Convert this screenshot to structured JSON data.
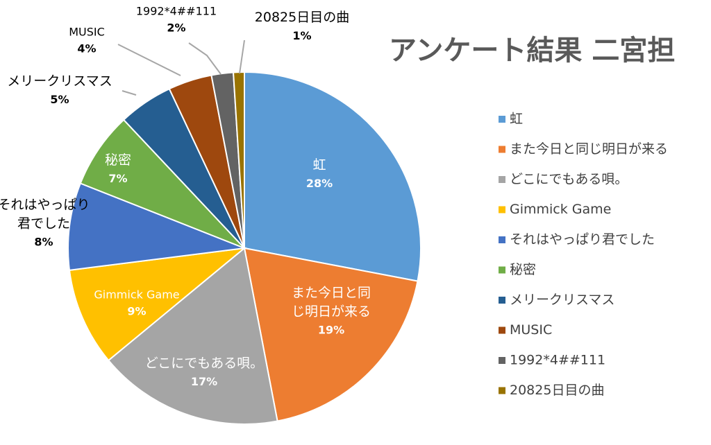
{
  "chart_data": {
    "type": "pie",
    "title": "アンケート結果 二宮担",
    "legend_position": "right",
    "data_labels": "category name and percent",
    "slices": [
      {
        "label": "虹",
        "value": 28,
        "value_label": "28%",
        "color": "#5B9BD5"
      },
      {
        "label": "また今日と同じ明日が来る",
        "value": 19,
        "value_label": "19%",
        "color": "#ED7D31"
      },
      {
        "label": "どこにでもある唄。",
        "value": 17,
        "value_label": "17%",
        "color": "#A5A5A5"
      },
      {
        "label": "Gimmick Game",
        "value": 9,
        "value_label": "9%",
        "color": "#FFC000"
      },
      {
        "label": "それはやっぱり君でした",
        "value": 8,
        "value_label": "8%",
        "color": "#4472C4"
      },
      {
        "label": "秘密",
        "value": 7,
        "value_label": "7%",
        "color": "#70AD47"
      },
      {
        "label": "メリークリスマス",
        "value": 5,
        "value_label": "5%",
        "color": "#255E91"
      },
      {
        "label": "MUSIC",
        "value": 4,
        "value_label": "4%",
        "color": "#9E480E"
      },
      {
        "label": "1992*4##111",
        "value": 2,
        "value_label": "2%",
        "color": "#636363"
      },
      {
        "label": "20825日目の曲",
        "value": 1,
        "value_label": "1%",
        "color": "#997300"
      }
    ]
  }
}
